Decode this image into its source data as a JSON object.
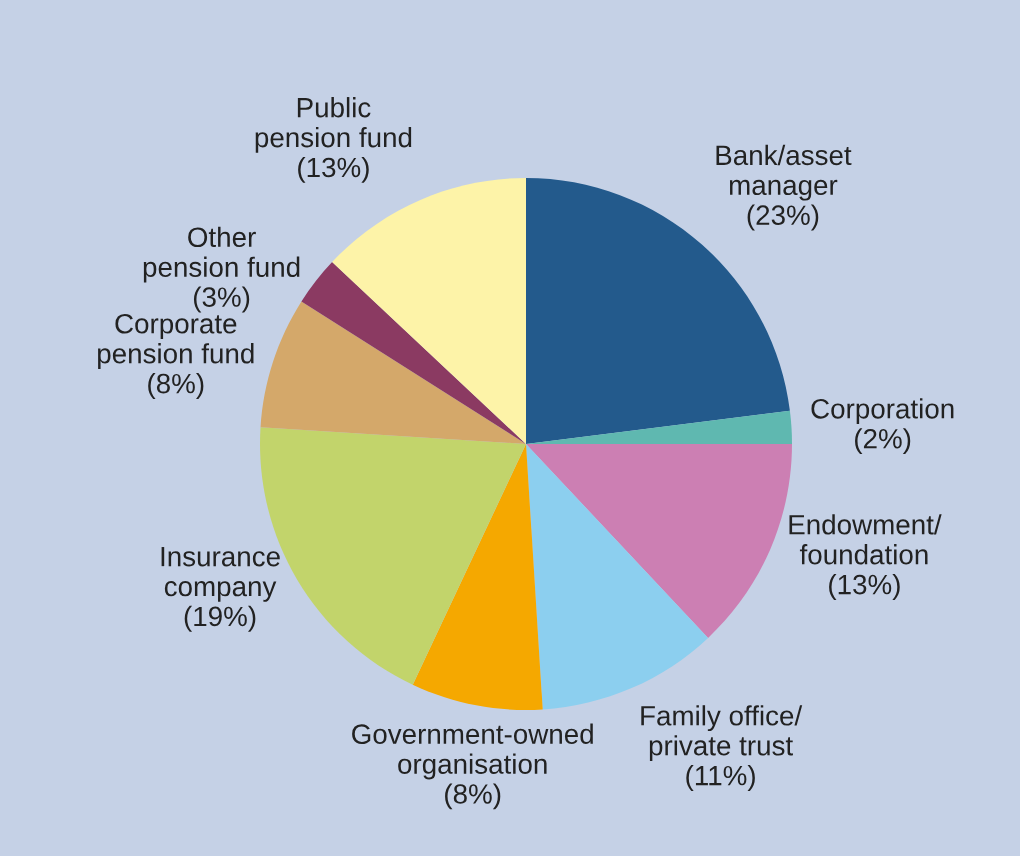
{
  "chart_data": {
    "type": "pie",
    "categories": [
      "Bank/asset\nmanager\n(23%)",
      "Corporation\n(2%)",
      "Endowment/\nfoundation\n(13%)",
      "Family office/\nprivate trust\n(11%)",
      "Government-owned\norganisation\n(8%)",
      "Insurance\ncompany\n(19%)",
      "Corporate\npension fund\n(8%)",
      "Other\npension fund\n(3%)",
      "Public\npension fund\n(13%)"
    ],
    "values": [
      23,
      2,
      13,
      11,
      8,
      19,
      8,
      3,
      13
    ],
    "colors": [
      "#235a8c",
      "#5fb8b0",
      "#cc7fb3",
      "#8ccfef",
      "#f5a800",
      "#c2d46b",
      "#d4a86a",
      "#8b3a62",
      "#fdf3a8"
    ]
  }
}
